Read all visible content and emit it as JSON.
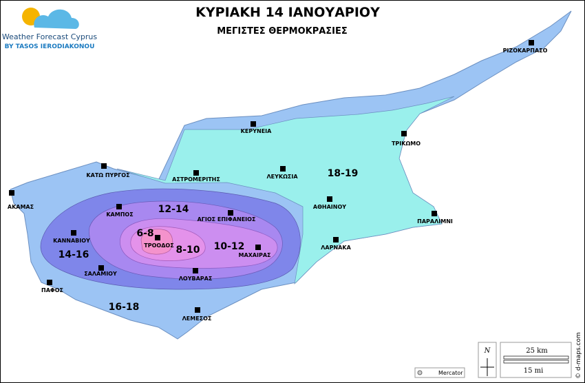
{
  "header": {
    "title": "ΚΥΡΙΑΚΗ 14 ΙΑΝΟΥΑΡΙΟΥ",
    "subtitle": "ΜΕΓΙΣΤΕΣ ΘΕΡΜΟΚΡΑΣΙΕΣ"
  },
  "logo": {
    "name": "Weather Forecast Cyprus",
    "byline": "BY TASOS IERODIAKONOU"
  },
  "zones": [
    {
      "label": "18-19"
    },
    {
      "label": "12-14"
    },
    {
      "label": "6-8"
    },
    {
      "label": "8-10"
    },
    {
      "label": "10-12"
    },
    {
      "label": "14-16"
    },
    {
      "label": "16-18"
    }
  ],
  "places": [
    {
      "label": "ΡΙΖΟΚΑΡΠΑΣΟ"
    },
    {
      "label": "ΚΕΡΥΝΕΙΑ"
    },
    {
      "label": "ΤΡΙΚΩΜΟ"
    },
    {
      "label": "ΛΕΥΚΩΣΙΑ"
    },
    {
      "label": "ΑΣΤΡΟΜΕΡΙΤΗΣ"
    },
    {
      "label": "ΚΑΤΩ ΠΥΡΓΟΣ"
    },
    {
      "label": "ΑΚΑΜΑΣ"
    },
    {
      "label": "ΑΘΗΑΙΝΟΥ"
    },
    {
      "label": "ΠΑΡΑΛΙΜΝΙ"
    },
    {
      "label": "ΚΑΜΠΟΣ"
    },
    {
      "label": "ΑΓΙΟΣ ΕΠΙΦΑΝΕΙΟΣ"
    },
    {
      "label": "ΚΑΝΝΑΒΙΟΥ"
    },
    {
      "label": "ΤΡΟΟΔΟΣ"
    },
    {
      "label": "ΜΑΧΑΙΡΑΣ"
    },
    {
      "label": "ΛΑΡΝΑΚΑ"
    },
    {
      "label": "ΣΑΛΑΜΙΟΥ"
    },
    {
      "label": "ΛΟΥΒΑΡΑΣ"
    },
    {
      "label": "ΠΑΦΟΣ"
    },
    {
      "label": "ΛΕΜΕΣΟΣ"
    }
  ],
  "scale": {
    "km": "25 km",
    "mi": "15 mi"
  },
  "north": "N",
  "projection": "Mercator",
  "credit": "© d-maps.com"
}
